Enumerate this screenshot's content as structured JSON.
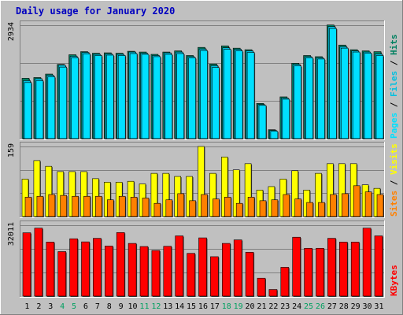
{
  "chart_data": {
    "type": "bar",
    "title": "Daily usage for January 2020",
    "colors": {
      "background": "#c0c0c0",
      "title": "#0000c0",
      "hits": "#008060",
      "files": "#00c0e0",
      "pages": "#00e0ff",
      "visits": "#ffff00",
      "sites": "#ff8000",
      "kbytes": "#ff0000",
      "weekend_day_label": "#00a060"
    },
    "categories": [
      "1",
      "2",
      "3",
      "4",
      "5",
      "6",
      "7",
      "8",
      "9",
      "10",
      "11",
      "12",
      "13",
      "14",
      "15",
      "16",
      "17",
      "18",
      "19",
      "20",
      "21",
      "22",
      "23",
      "24",
      "25",
      "26",
      "27",
      "28",
      "29",
      "30",
      "31"
    ],
    "weekend_days": [
      "4",
      "5",
      "11",
      "12",
      "18",
      "19",
      "25",
      "26"
    ],
    "panels": [
      {
        "name": "hits-files-pages",
        "max_label": "2934",
        "ylim": [
          0,
          2934
        ],
        "legend": [
          {
            "text": "Pages",
            "color": "#00e0ff"
          },
          {
            "text": " / ",
            "color": "#000000"
          },
          {
            "text": "Files",
            "color": "#00c0e0"
          },
          {
            "text": " / ",
            "color": "#000000"
          },
          {
            "text": "Hits",
            "color": "#008060"
          }
        ],
        "series": [
          {
            "name": "Hits",
            "values": [
              1561,
              1580,
              1670,
              1920,
              2170,
              2250,
              2210,
              2220,
              2210,
              2260,
              2240,
              2180,
              2240,
              2270,
              2150,
              2360,
              1930,
              2400,
              2340,
              2300,
              910,
              230,
              1080,
              1950,
              2150,
              2120,
              2940,
              2420,
              2300,
              2270,
              2250
            ]
          },
          {
            "name": "Files",
            "values": [
              1500,
              1550,
              1640,
              1900,
              2130,
              2230,
              2180,
              2190,
              2180,
              2240,
              2210,
              2150,
              2220,
              2240,
              2120,
              2320,
              1890,
              2350,
              2310,
              2270,
              880,
              210,
              1050,
              1920,
              2120,
              2090,
              2900,
              2380,
              2270,
              2240,
              2190
            ]
          },
          {
            "name": "Pages",
            "values": [
              1450,
              1500,
              1600,
              1850,
              2090,
              2190,
              2150,
              2160,
              2150,
              2200,
              2180,
              2120,
              2180,
              2200,
              2090,
              2280,
              1840,
              2310,
              2270,
              2230,
              860,
              190,
              1020,
              1880,
              2090,
              2060,
              2850,
              2340,
              2240,
              2210,
              2150
            ]
          }
        ]
      },
      {
        "name": "visits-sites",
        "max_label": "159",
        "ylim": [
          0,
          159
        ],
        "legend": [
          {
            "text": "Sites",
            "color": "#ff8000"
          },
          {
            "text": " / ",
            "color": "#000000"
          },
          {
            "text": "Visits",
            "color": "#ffff00"
          }
        ],
        "series": [
          {
            "name": "Visits",
            "values": [
              85,
              127,
              114,
              102,
              102,
              102,
              86,
              78,
              78,
              80,
              74,
              98,
              98,
              91,
              91,
              159,
              98,
              135,
              106,
              120,
              60,
              68,
              85,
              104,
              60,
              98,
              120,
              120,
              120,
              72,
              64
            ]
          },
          {
            "name": "Sites",
            "values": [
              44,
              46,
              50,
              48,
              46,
              46,
              46,
              38,
              46,
              44,
              42,
              30,
              38,
              52,
              36,
              50,
              40,
              44,
              30,
              44,
              36,
              38,
              50,
              40,
              32,
              32,
              50,
              52,
              70,
              56,
              50
            ]
          }
        ]
      },
      {
        "name": "kbytes",
        "max_label": "32011",
        "ylim": [
          0,
          32011
        ],
        "legend": [
          {
            "text": "KBytes",
            "color": "#ff0000"
          }
        ],
        "series": [
          {
            "name": "KBytes",
            "values": [
              28600,
              30700,
              24400,
              20100,
              25900,
              24500,
              26100,
              22600,
              28700,
              23800,
              22400,
              20600,
              22500,
              27200,
              19300,
              26300,
              17800,
              23800,
              25400,
              19800,
              8100,
              3000,
              13000,
              26600,
              21600,
              21600,
              26100,
              24400,
              24400,
              30700,
              27200
            ]
          }
        ]
      }
    ]
  }
}
